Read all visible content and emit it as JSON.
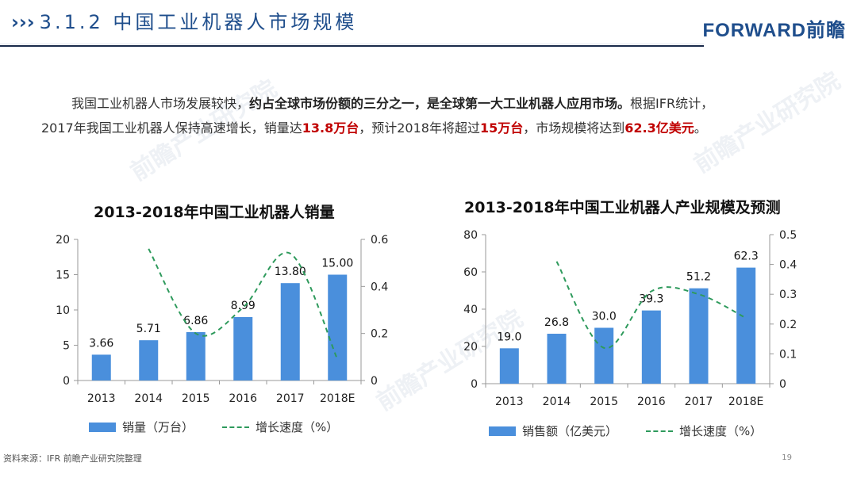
{
  "header": {
    "chevrons": "›››",
    "title": "3.1.2 中国工业机器人市场规模",
    "logo": "FORWARD前瞻"
  },
  "intro": {
    "line1_a": "我国工业机器人市场发展较快，",
    "line1_b": "约占全球市场份额的三分之一，是全球第一大工业机器人应用市场。",
    "line1_c": "根据IFR统计，",
    "line2_a": "2017年我国工业机器人保持高速增长，销量达",
    "line2_b": "13.8万台",
    "line2_c": "，预计2018年将超过",
    "line2_d": "15万台",
    "line2_e": "，市场规模将达到",
    "line2_f": "62.3亿美元",
    "line2_g": "。"
  },
  "footer": {
    "source": "资料来源：IFR 前瞻产业研究院整理",
    "page": "19"
  },
  "watermark": {
    "text": "前瞻产业研究院"
  },
  "colors": {
    "bar": "#4a8fdc",
    "line": "#2e9a5c",
    "accent_red": "#c00000",
    "brand": "#1f4e8c"
  },
  "chart_data": [
    {
      "type": "bar",
      "title": "2013-2018年中国工业机器人销量",
      "categories": [
        "2013",
        "2014",
        "2015",
        "2016",
        "2017",
        "2018E"
      ],
      "series": [
        {
          "name": "销量（万台）",
          "type": "bar",
          "axis": "left",
          "values": [
            3.66,
            5.71,
            6.86,
            8.99,
            13.8,
            15.0
          ],
          "labels": [
            "3.66",
            "5.71",
            "6.86",
            "8.99",
            "13.80",
            "15.00"
          ]
        },
        {
          "name": "增长速度（%）",
          "type": "line",
          "style": "dashed",
          "axis": "right",
          "values": [
            null,
            0.56,
            0.2,
            0.31,
            0.54,
            0.09
          ]
        }
      ],
      "ylim": [
        0,
        20
      ],
      "yticks": [
        "0",
        "5",
        "10",
        "15",
        "20"
      ],
      "y2lim": [
        0,
        0.6
      ],
      "y2ticks": [
        "0",
        "0.2",
        "0.4",
        "0.6"
      ],
      "legend": "bottom"
    },
    {
      "type": "bar",
      "title": "2013-2018年中国工业机器人产业规模及预测",
      "categories": [
        "2013",
        "2014",
        "2015",
        "2016",
        "2017",
        "2018E"
      ],
      "series": [
        {
          "name": "销售额（亿美元）",
          "type": "bar",
          "axis": "left",
          "values": [
            19.0,
            26.8,
            30.0,
            39.3,
            51.2,
            62.3
          ],
          "labels": [
            "19.0",
            "26.8",
            "30.0",
            "39.3",
            "51.2",
            "62.3"
          ]
        },
        {
          "name": "增长速度（%）",
          "type": "line",
          "style": "dashed",
          "axis": "right",
          "values": [
            null,
            0.41,
            0.12,
            0.31,
            0.3,
            0.22
          ]
        }
      ],
      "ylim": [
        0,
        80
      ],
      "yticks": [
        "0",
        "20",
        "40",
        "60",
        "80"
      ],
      "y2lim": [
        0,
        0.5
      ],
      "y2ticks": [
        "0",
        "0.1",
        "0.2",
        "0.3",
        "0.4",
        "0.5"
      ],
      "legend": "bottom"
    }
  ]
}
